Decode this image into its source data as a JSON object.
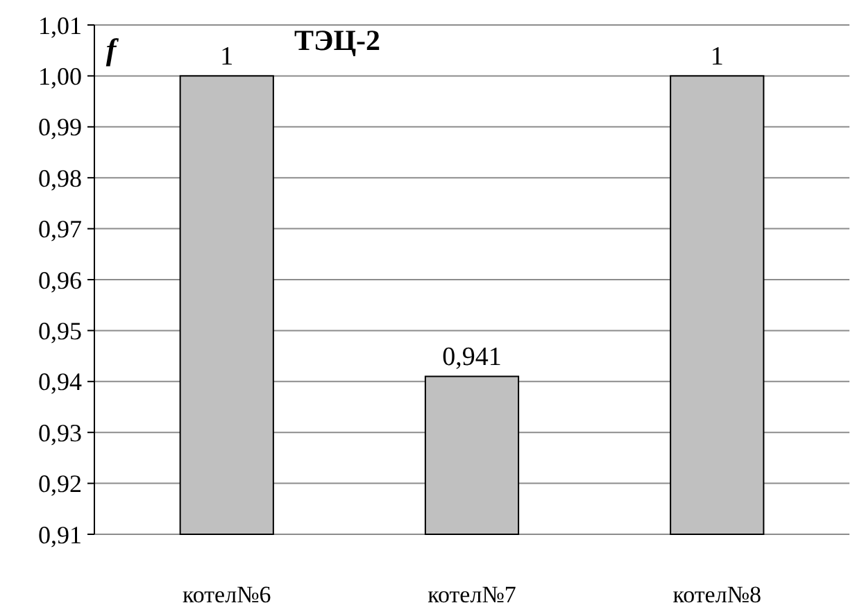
{
  "chart_data": {
    "type": "bar",
    "title": "ТЭЦ-2",
    "ylabel": "f",
    "categories": [
      "котел№6",
      "котел№7",
      "котел№8"
    ],
    "values": [
      1,
      0.941,
      1
    ],
    "value_labels": [
      "1",
      "0,941",
      "1"
    ],
    "color": "#c0c0c0",
    "ylim": [
      0.91,
      1.01
    ],
    "yticks": [
      {
        "value": 0.91,
        "label": "0,91"
      },
      {
        "value": 0.92,
        "label": "0,92"
      },
      {
        "value": 0.93,
        "label": "0,93"
      },
      {
        "value": 0.94,
        "label": "0,94"
      },
      {
        "value": 0.95,
        "label": "0,95"
      },
      {
        "value": 0.96,
        "label": "0,96"
      },
      {
        "value": 0.97,
        "label": "0,97"
      },
      {
        "value": 0.98,
        "label": "0,98"
      },
      {
        "value": 0.99,
        "label": "0,99"
      },
      {
        "value": 1,
        "label": "1,00"
      },
      {
        "value": 1.01,
        "label": "1,01"
      }
    ],
    "grid": "y"
  }
}
